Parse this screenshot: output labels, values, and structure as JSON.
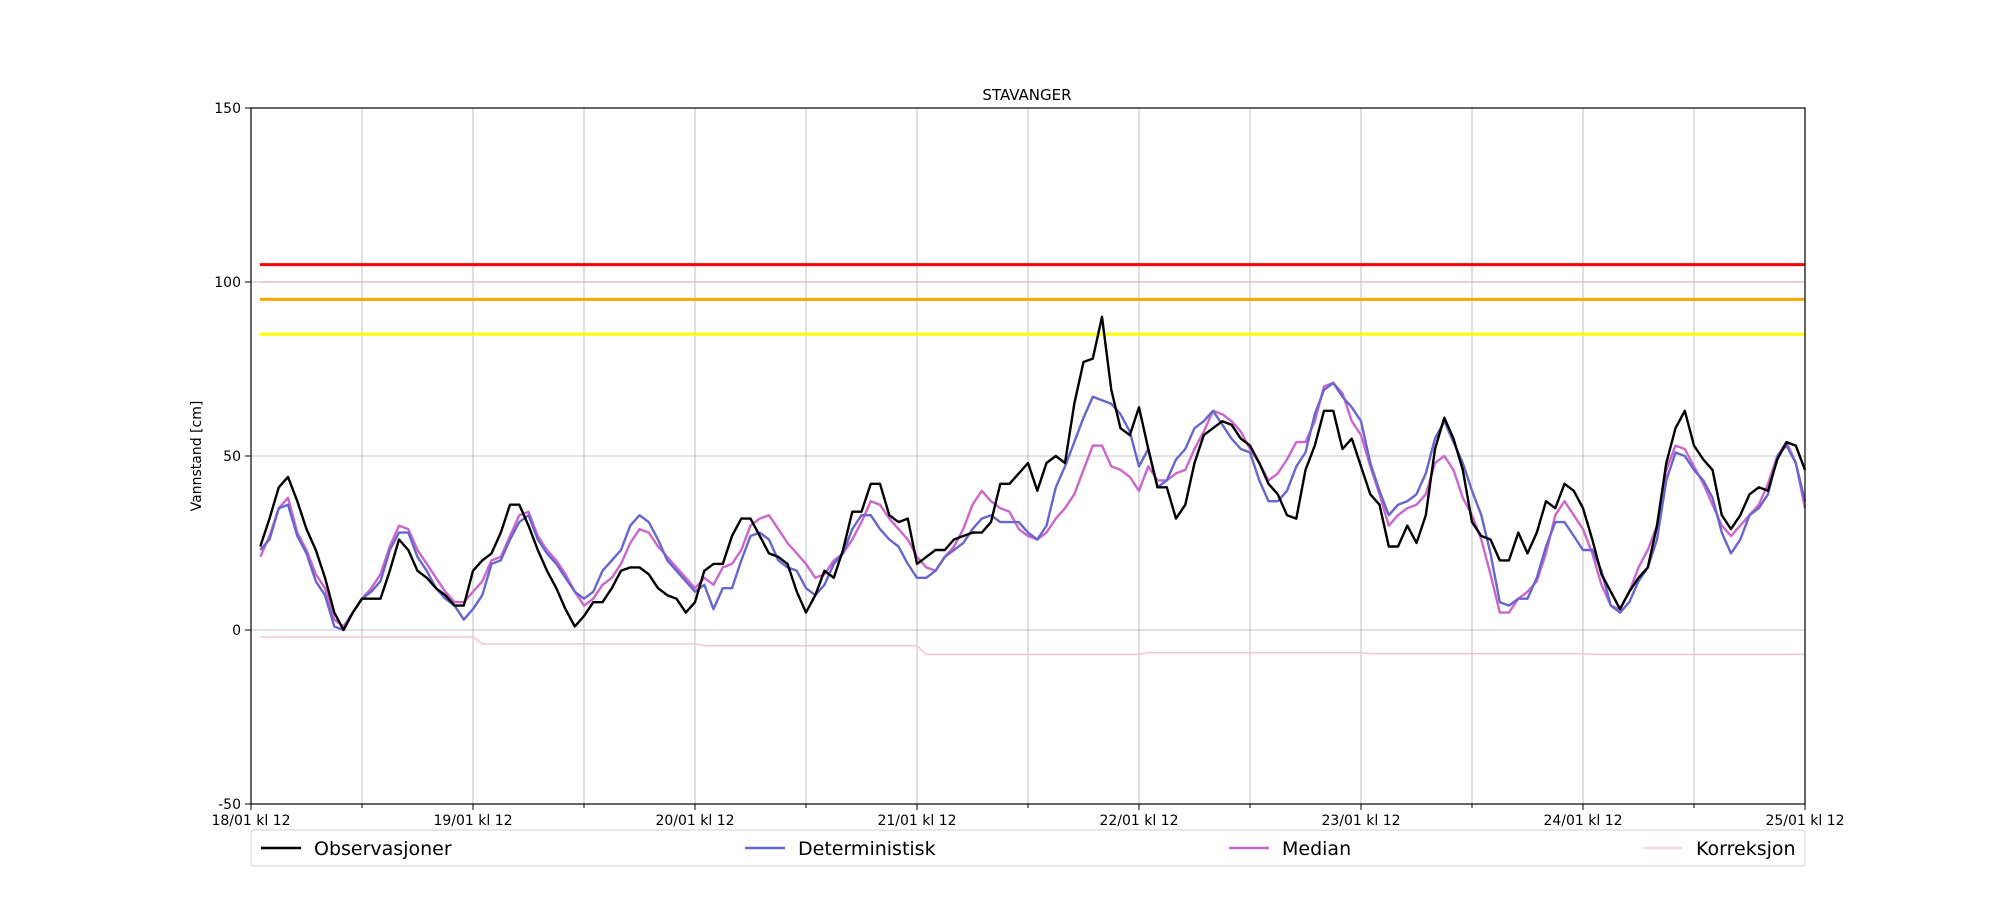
{
  "chart_data": {
    "type": "line",
    "title": "STAVANGER",
    "xlabel": "",
    "ylabel": "Vannstand [cm]",
    "ylim": [
      -50,
      150
    ],
    "xlim_hours": [
      0,
      168
    ],
    "grid": true,
    "legend_placement": "bottom",
    "x_ticks": [
      {
        "label": "18/01 kl 12",
        "hour": 0
      },
      {
        "label": "19/01 kl 12",
        "hour": 24
      },
      {
        "label": "20/01 kl 12",
        "hour": 48
      },
      {
        "label": "21/01 kl 12",
        "hour": 72
      },
      {
        "label": "22/01 kl 12",
        "hour": 96
      },
      {
        "label": "23/01 kl 12",
        "hour": 120
      },
      {
        "label": "24/01 kl 12",
        "hour": 144
      },
      {
        "label": "25/01 kl 12",
        "hour": 168
      }
    ],
    "y_ticks": [
      -50,
      0,
      50,
      100,
      150
    ],
    "thresholds": [
      {
        "value": 105,
        "color": "#ff0000"
      },
      {
        "value": 100,
        "color": "#e6bcbc"
      },
      {
        "value": 95,
        "color": "#ffa500"
      },
      {
        "value": 85,
        "color": "#ffff00"
      }
    ],
    "series": [
      {
        "name": "Observasjoner",
        "color": "#000000",
        "x": [
          1,
          2,
          3,
          4,
          5,
          6,
          7,
          8,
          9,
          10,
          11,
          12,
          13,
          14,
          15,
          16,
          17,
          18,
          19,
          20,
          21,
          22,
          23,
          24,
          25,
          26,
          27,
          28,
          29,
          30,
          31,
          32,
          33,
          34,
          35,
          36,
          37,
          38,
          39,
          40,
          41,
          42,
          43,
          44,
          45,
          46,
          47,
          48,
          49,
          50,
          51,
          52,
          53,
          54,
          55,
          56,
          57,
          58,
          59,
          60,
          61,
          62,
          63,
          64,
          65,
          66,
          67,
          68,
          69,
          70,
          71,
          72,
          73,
          74,
          75,
          76,
          77,
          78,
          79,
          80,
          81,
          82,
          83,
          84,
          85,
          86,
          87,
          88,
          89,
          90,
          91,
          92,
          93,
          94,
          95,
          96,
          97,
          98,
          99,
          100,
          101,
          102,
          103,
          104,
          105,
          106,
          107,
          108,
          109,
          110,
          111,
          112,
          113,
          114,
          115,
          116,
          117,
          118,
          119,
          120,
          121,
          122,
          123,
          124,
          125,
          126,
          127,
          128,
          129,
          130,
          131,
          132,
          133,
          134,
          135,
          136,
          137,
          138,
          139,
          140,
          141,
          142,
          143,
          144,
          145,
          146,
          147,
          148,
          149,
          150,
          151,
          152,
          153,
          154,
          155,
          156,
          157,
          158,
          159,
          160,
          161,
          162,
          163,
          164,
          165,
          166,
          167,
          168
        ],
        "values": [
          24,
          32,
          41,
          44,
          37,
          29,
          23,
          15,
          5,
          0,
          5,
          9,
          9,
          9,
          17,
          26,
          23,
          17,
          15,
          12,
          10,
          7,
          7,
          17,
          20,
          22,
          28,
          36,
          36,
          30,
          23,
          17,
          12,
          6,
          1,
          4,
          8,
          8,
          12,
          17,
          18,
          18,
          16,
          12,
          10,
          9,
          5,
          8,
          17,
          19,
          19,
          27,
          32,
          32,
          27,
          22,
          21,
          19,
          11,
          5,
          10,
          17,
          15,
          23,
          34,
          34,
          42,
          42,
          33,
          31,
          32,
          19,
          21,
          23,
          23,
          26,
          27,
          28,
          28,
          31,
          42,
          42,
          45,
          48,
          40,
          48,
          50,
          48,
          65,
          77,
          78,
          90,
          69,
          58,
          56,
          64,
          52,
          41,
          41,
          32,
          36,
          48,
          56,
          58,
          60,
          59,
          55,
          53,
          48,
          42,
          39,
          33,
          32,
          46,
          53,
          63,
          63,
          52,
          55,
          47,
          39,
          36,
          24,
          24,
          30,
          25,
          33,
          52,
          61,
          55,
          46,
          31,
          27,
          26,
          20,
          20,
          28,
          22,
          28,
          37,
          35,
          42,
          40,
          35,
          26,
          16,
          11,
          6,
          11,
          15,
          18,
          30,
          48,
          58,
          63,
          53,
          49,
          46,
          33,
          29,
          33,
          39,
          41,
          40,
          49,
          54,
          53,
          46
        ]
      },
      {
        "name": "Deterministisk",
        "color": "#6666cc",
        "x": [
          1,
          2,
          3,
          4,
          5,
          6,
          7,
          8,
          9,
          10,
          11,
          12,
          13,
          14,
          15,
          16,
          17,
          18,
          19,
          20,
          21,
          22,
          23,
          24,
          25,
          26,
          27,
          28,
          29,
          30,
          31,
          32,
          33,
          34,
          35,
          36,
          37,
          38,
          39,
          40,
          41,
          42,
          43,
          44,
          45,
          46,
          47,
          48,
          49,
          50,
          51,
          52,
          53,
          54,
          55,
          56,
          57,
          58,
          59,
          60,
          61,
          62,
          63,
          64,
          65,
          66,
          67,
          68,
          69,
          70,
          71,
          72,
          73,
          74,
          75,
          76,
          77,
          78,
          79,
          80,
          81,
          82,
          83,
          84,
          85,
          86,
          87,
          88,
          89,
          90,
          91,
          92,
          93,
          94,
          95,
          96,
          97,
          98,
          99,
          100,
          101,
          102,
          103,
          104,
          105,
          106,
          107,
          108,
          109,
          110,
          111,
          112,
          113,
          114,
          115,
          116,
          117,
          118,
          119,
          120,
          121,
          122,
          123,
          124,
          125,
          126,
          127,
          128,
          129,
          130,
          131,
          132,
          133,
          134,
          135,
          136,
          137,
          138,
          139,
          140,
          141,
          142,
          143,
          144,
          145,
          146,
          147,
          148,
          149,
          150,
          151,
          152,
          153,
          154,
          155,
          156,
          157,
          158,
          159,
          160,
          161,
          162,
          163,
          164,
          165,
          166,
          167,
          168
        ],
        "values": [
          23,
          26,
          35,
          36,
          27,
          22,
          14,
          10,
          1,
          0,
          5,
          9,
          11,
          14,
          23,
          28,
          28,
          21,
          17,
          12,
          9,
          7,
          3,
          6,
          10,
          19,
          20,
          26,
          31,
          33,
          26,
          22,
          19,
          15,
          11,
          9,
          11,
          17,
          20,
          23,
          30,
          33,
          31,
          26,
          20,
          17,
          14,
          11,
          13,
          6,
          12,
          12,
          20,
          27,
          28,
          26,
          20,
          18,
          17,
          12,
          10,
          13,
          19,
          22,
          29,
          33,
          33,
          29,
          26,
          24,
          19,
          15,
          15,
          17,
          21,
          23,
          25,
          29,
          32,
          33,
          31,
          31,
          31,
          28,
          26,
          30,
          41,
          47,
          54,
          61,
          67,
          66,
          65,
          62,
          57,
          47,
          52,
          41,
          43,
          49,
          52,
          58,
          60,
          63,
          59,
          55,
          52,
          51,
          43,
          37,
          37,
          40,
          47,
          51,
          62,
          69,
          71,
          67,
          64,
          60,
          48,
          40,
          33,
          36,
          37,
          39,
          45,
          55,
          60,
          54,
          48,
          40,
          33,
          22,
          8,
          7,
          9,
          9,
          15,
          24,
          31,
          31,
          27,
          23,
          23,
          17,
          7,
          5,
          8,
          14,
          18,
          26,
          43,
          51,
          50,
          46,
          43,
          38,
          28,
          22,
          26,
          33,
          35,
          39,
          50,
          53,
          48,
          37
        ]
      },
      {
        "name": "Median",
        "color": "#cc66cc",
        "x": [
          1,
          2,
          3,
          4,
          5,
          6,
          7,
          8,
          9,
          10,
          11,
          12,
          13,
          14,
          15,
          16,
          17,
          18,
          19,
          20,
          21,
          22,
          23,
          24,
          25,
          26,
          27,
          28,
          29,
          30,
          31,
          32,
          33,
          34,
          35,
          36,
          37,
          38,
          39,
          40,
          41,
          42,
          43,
          44,
          45,
          46,
          47,
          48,
          49,
          50,
          51,
          52,
          53,
          54,
          55,
          56,
          57,
          58,
          59,
          60,
          61,
          62,
          63,
          64,
          65,
          66,
          67,
          68,
          69,
          70,
          71,
          72,
          73,
          74,
          75,
          76,
          77,
          78,
          79,
          80,
          81,
          82,
          83,
          84,
          85,
          86,
          87,
          88,
          89,
          90,
          91,
          92,
          93,
          94,
          95,
          96,
          97,
          98,
          99,
          100,
          101,
          102,
          103,
          104,
          105,
          106,
          107,
          108,
          109,
          110,
          111,
          112,
          113,
          114,
          115,
          116,
          117,
          118,
          119,
          120,
          121,
          122,
          123,
          124,
          125,
          126,
          127,
          128,
          129,
          130,
          131,
          132,
          133,
          134,
          135,
          136,
          137,
          138,
          139,
          140,
          141,
          142,
          143,
          144,
          145,
          146,
          147,
          148,
          149,
          150,
          151,
          152,
          153,
          154,
          155,
          156,
          157,
          158,
          159,
          160,
          161,
          162,
          163,
          164,
          165,
          166,
          167,
          168
        ],
        "values": [
          21,
          27,
          35,
          38,
          28,
          23,
          16,
          12,
          3,
          1,
          5,
          9,
          12,
          16,
          24,
          30,
          29,
          23,
          19,
          15,
          11,
          8,
          8,
          11,
          14,
          20,
          21,
          27,
          33,
          34,
          27,
          23,
          20,
          16,
          11,
          7,
          9,
          13,
          15,
          19,
          25,
          29,
          28,
          24,
          21,
          18,
          15,
          12,
          15,
          13,
          18,
          19,
          23,
          30,
          32,
          33,
          29,
          25,
          22,
          19,
          15,
          16,
          20,
          22,
          26,
          31,
          37,
          36,
          32,
          29,
          26,
          21,
          18,
          17,
          21,
          24,
          29,
          36,
          40,
          37,
          35,
          34,
          29,
          27,
          26,
          28,
          32,
          35,
          39,
          46,
          53,
          53,
          47,
          46,
          44,
          40,
          47,
          43,
          43,
          45,
          46,
          52,
          57,
          63,
          62,
          60,
          57,
          52,
          48,
          43,
          45,
          49,
          54,
          54,
          60,
          70,
          71,
          68,
          60,
          56,
          47,
          39,
          30,
          33,
          35,
          36,
          39,
          48,
          50,
          46,
          38,
          33,
          26,
          16,
          5,
          5,
          9,
          11,
          14,
          22,
          33,
          37,
          33,
          29,
          22,
          13,
          7,
          6,
          11,
          18,
          23,
          30,
          46,
          53,
          52,
          47,
          42,
          36,
          30,
          27,
          30,
          33,
          36,
          42,
          50,
          54,
          48,
          35
        ]
      },
      {
        "name": "Korreksjon",
        "color": "#f7c4d4",
        "x": [
          1,
          24,
          25,
          48,
          49,
          72,
          73,
          96,
          97,
          120,
          121,
          144,
          145,
          168
        ],
        "values": [
          -2,
          -2,
          -4,
          -4,
          -4.5,
          -4.5,
          -7,
          -7,
          -6.5,
          -6.5,
          -6.8,
          -6.8,
          -7,
          -7
        ]
      }
    ]
  }
}
